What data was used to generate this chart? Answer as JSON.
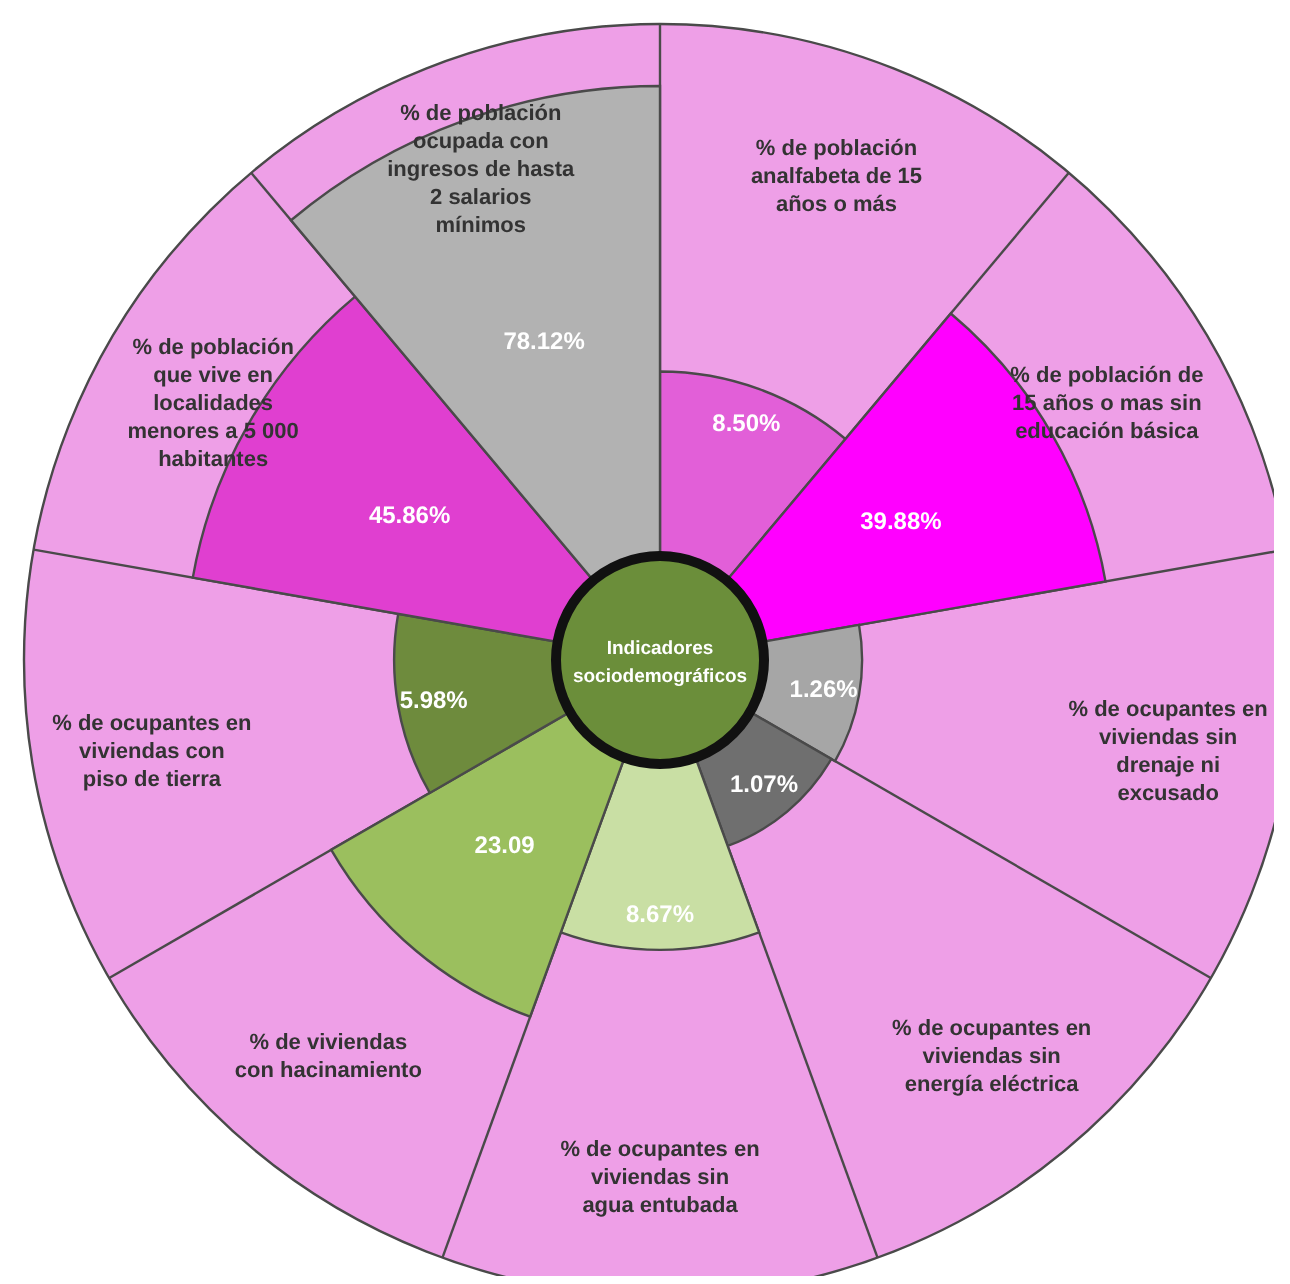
{
  "chart_data": {
    "type": "other",
    "title": "Indicadores sociodemográficos",
    "categories": [
      "% de población analfabeta de 15 años o más",
      "% de población de 15 años o mas sin educación básica",
      "% de ocupantes en viviendas sin drenaje ni excusado",
      "% de ocupantes en viviendas sin energía eléctrica",
      "% de ocupantes en viviendas sin agua entubada",
      "% de viviendas con hacinamiento",
      "% de ocupantes en viviendas con piso de tierra",
      "% de población que vive en localidades menores a 5 000 habitantes",
      "% de población ocupada con ingresos de hasta 2 salarios mínimos"
    ],
    "values": [
      8.5,
      39.88,
      1.26,
      1.07,
      8.67,
      23.09,
      5.98,
      45.86,
      78.12
    ],
    "value_labels": [
      "8.50%",
      "39.88%",
      "1.26%",
      "1.07%",
      "8.67%",
      "23.09",
      "5.98%",
      "45.86%",
      "78.12%"
    ],
    "colors": [
      "#e25fd8",
      "#ff00ff",
      "#a6a6a6",
      "#6f6f6f",
      "#c9dfa4",
      "#9bbf5e",
      "#6e8b3d",
      "#e03fd0",
      "#b2b2b2"
    ]
  }
}
